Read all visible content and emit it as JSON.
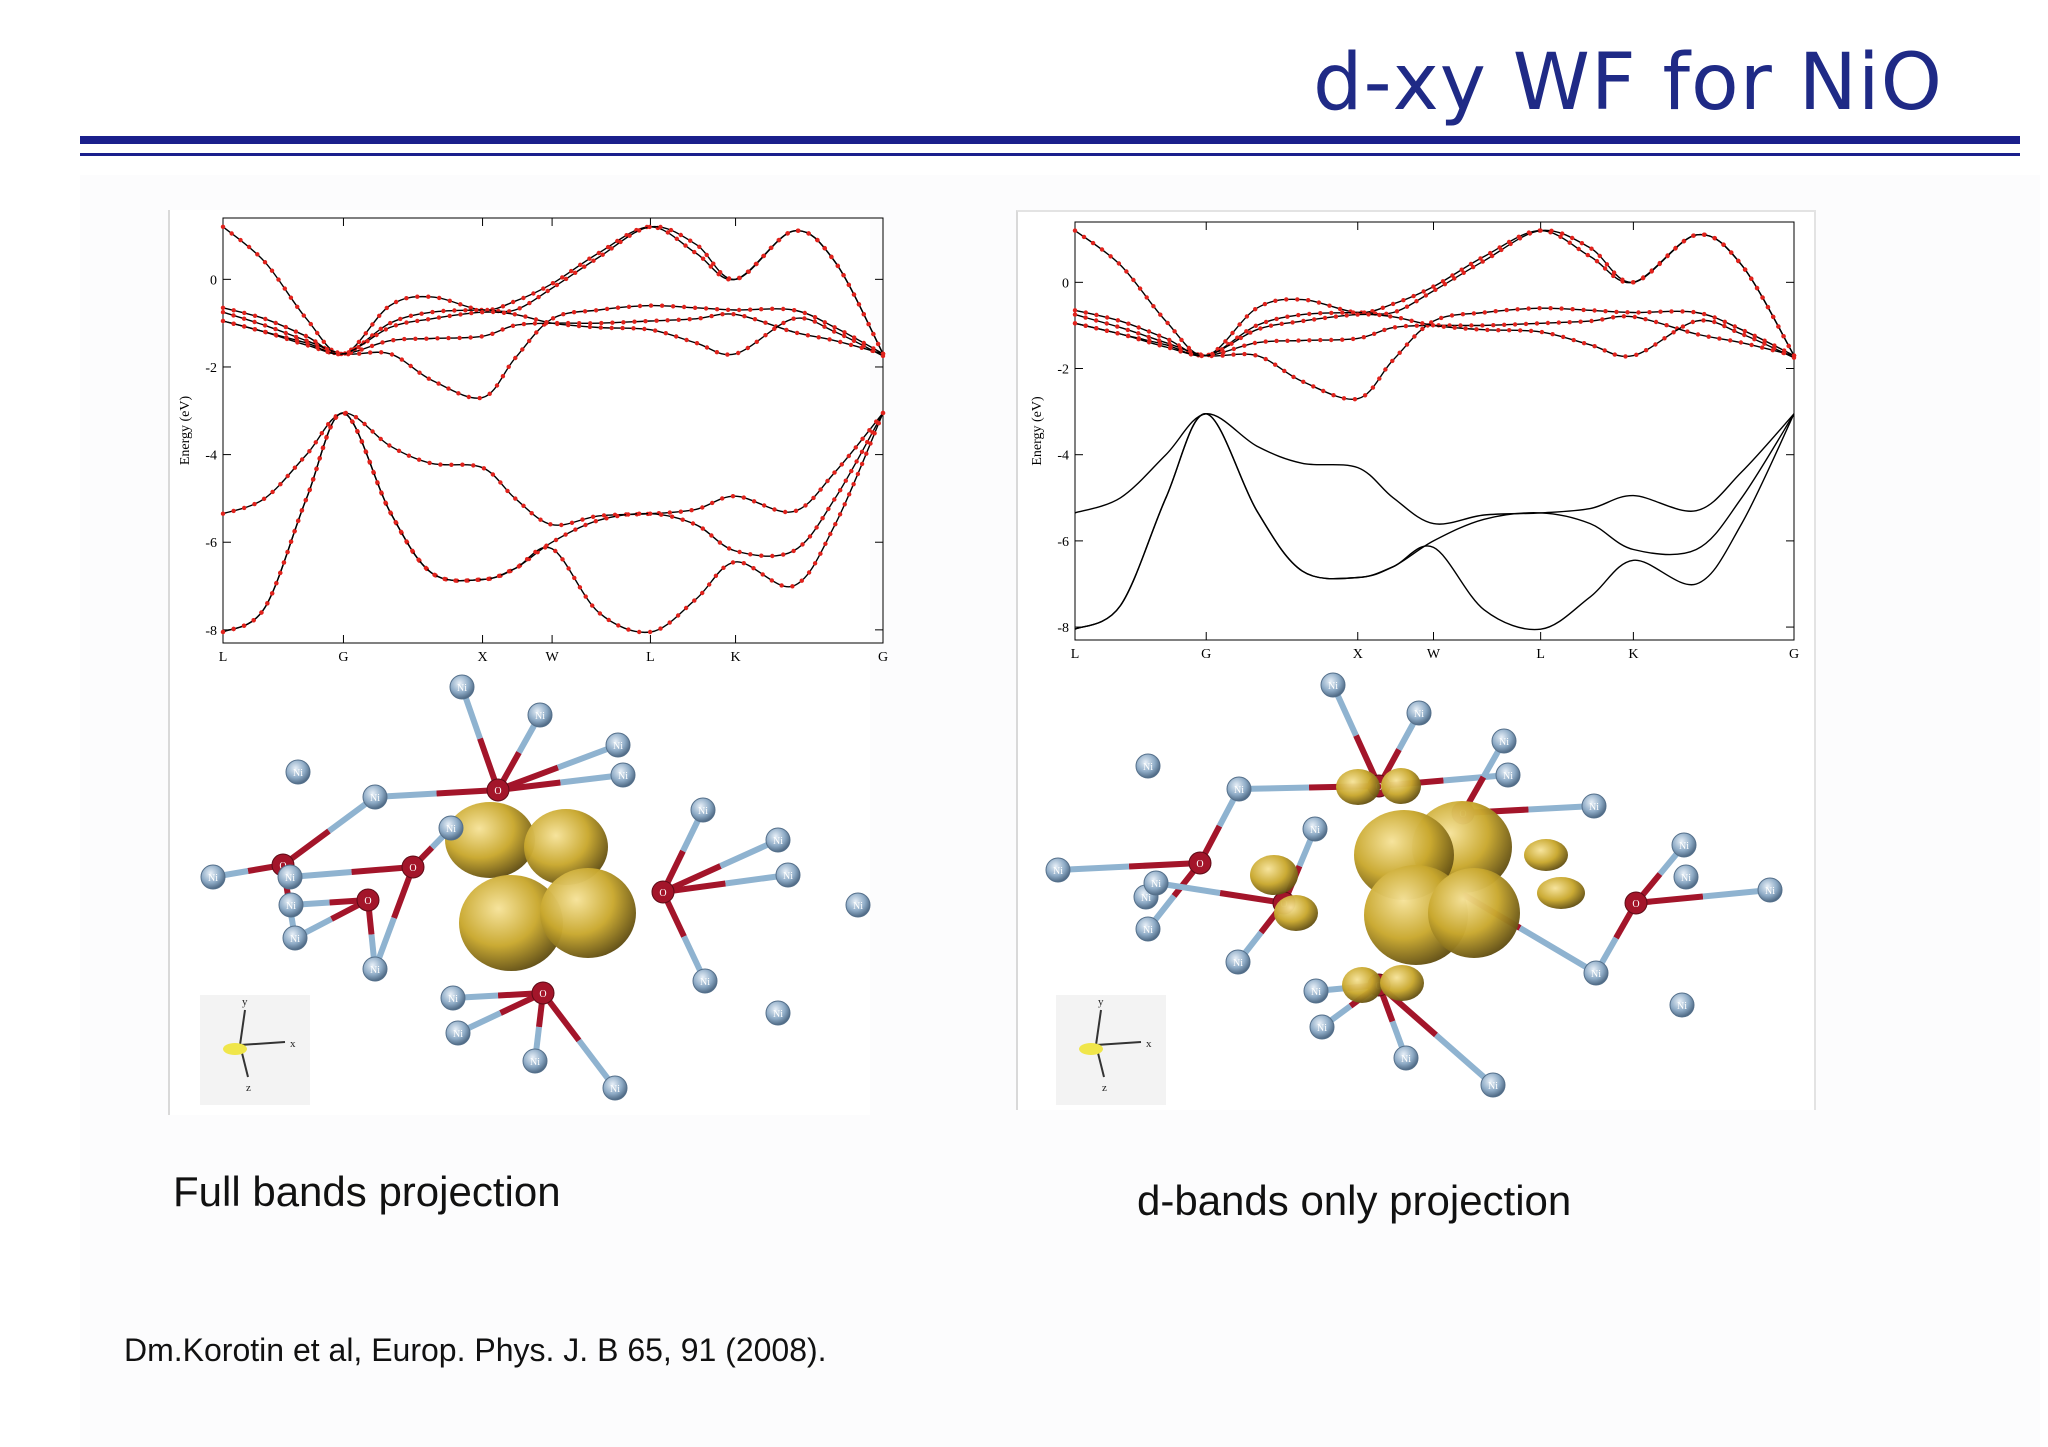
{
  "slide": {
    "title": "d-xy WF for NiO",
    "caption_left": "Full bands projection",
    "caption_right": "d-bands only projection",
    "reference": "Dm.Korotin et al, Europ. Phys. J. B 65, 91 (2008)."
  },
  "colors": {
    "title": "#1f2a86",
    "rule": "#1a1f8c",
    "band_line": "#000000",
    "projection_dots": "#e0221c",
    "orbital_lobe": "#c9a82e",
    "ni_atom": "#8eabc6",
    "o_atom": "#a3152a",
    "bond_ni": "#8fb3d0",
    "bond_o": "#a3152a"
  },
  "structure_labels": {
    "ni": "Ni",
    "o": "O",
    "axis_x": "x",
    "axis_y": "y",
    "axis_z": "z"
  },
  "chart_data": [
    {
      "type": "line",
      "panel": "Full bands projection",
      "ylabel": "Energy (eV)",
      "ylim": [
        -8.3,
        1.4
      ],
      "yticks": [
        "0",
        "-2",
        "-4",
        "-6",
        "-8"
      ],
      "ytick_values": [
        0,
        -2,
        -4,
        -6,
        -8
      ],
      "kpoints": [
        "L",
        "G",
        "X",
        "W",
        "L",
        "K",
        "G"
      ],
      "kpoint_positions": [
        0,
        0.866,
        1.866,
        2.366,
        3.073,
        3.685,
        4.745
      ],
      "projection_dots_on": "all bands",
      "series": [
        {
          "x": [
            0,
            0.3,
            0.6,
            0.866,
            1.2,
            1.5,
            1.866,
            2.1,
            2.366,
            2.7,
            3.073,
            3.4,
            3.685,
            4.1,
            4.4,
            4.745
          ],
          "values": [
            1.2,
            0.4,
            -0.9,
            -1.7,
            -0.6,
            -0.4,
            -0.7,
            -0.5,
            -0.1,
            0.6,
            1.2,
            0.6,
            0.0,
            1.1,
            0.4,
            -1.7
          ]
        },
        {
          "x": [
            0,
            0.3,
            0.6,
            0.866,
            1.2,
            1.5,
            1.866,
            2.1,
            2.366,
            2.7,
            3.073,
            3.4,
            3.685,
            4.1,
            4.4,
            4.745
          ],
          "values": [
            -0.65,
            -0.9,
            -1.3,
            -1.7,
            -1.0,
            -0.75,
            -0.7,
            -0.7,
            -0.2,
            0.5,
            1.2,
            0.8,
            0.0,
            1.1,
            0.4,
            -1.7
          ]
        },
        {
          "x": [
            0,
            0.3,
            0.6,
            0.866,
            1.2,
            1.5,
            1.866,
            2.1,
            2.366,
            2.7,
            3.073,
            3.4,
            3.685,
            4.1,
            4.4,
            4.745
          ],
          "values": [
            -0.75,
            -1.05,
            -1.4,
            -1.7,
            -1.7,
            -2.3,
            -2.7,
            -1.8,
            -0.9,
            -0.7,
            -0.6,
            -0.65,
            -0.7,
            -0.7,
            -1.1,
            -1.7
          ]
        },
        {
          "x": [
            0,
            0.3,
            0.6,
            0.866,
            1.2,
            1.5,
            1.866,
            2.1,
            2.366,
            2.7,
            3.073,
            3.4,
            3.685,
            4.1,
            4.4,
            4.745
          ],
          "values": [
            -0.95,
            -1.2,
            -1.5,
            -1.7,
            -1.4,
            -1.35,
            -1.3,
            -1.05,
            -1.0,
            -1.0,
            -0.95,
            -0.9,
            -0.8,
            -1.2,
            -1.4,
            -1.7
          ]
        },
        {
          "x": [
            0,
            0.3,
            0.6,
            0.866,
            1.2,
            1.5,
            1.866,
            2.1,
            2.366,
            2.7,
            3.073,
            3.4,
            3.685,
            4.1,
            4.4,
            4.745
          ],
          "values": [
            -0.95,
            -1.2,
            -1.45,
            -1.7,
            -1.1,
            -0.9,
            -0.75,
            -0.8,
            -1.0,
            -1.1,
            -1.15,
            -1.45,
            -1.7,
            -0.9,
            -1.2,
            -1.75
          ]
        },
        {
          "x": [
            0,
            0.3,
            0.6,
            0.866,
            1.2,
            1.5,
            1.866,
            2.1,
            2.366,
            2.7,
            3.073,
            3.4,
            3.685,
            4.1,
            4.4,
            4.745
          ],
          "values": [
            -5.35,
            -5.0,
            -4.0,
            -3.05,
            -3.8,
            -4.2,
            -4.3,
            -5.0,
            -5.6,
            -5.4,
            -5.35,
            -5.25,
            -4.95,
            -5.3,
            -4.4,
            -3.05
          ]
        },
        {
          "x": [
            0,
            0.3,
            0.6,
            0.866,
            1.2,
            1.5,
            1.866,
            2.1,
            2.366,
            2.7,
            3.073,
            3.4,
            3.685,
            4.1,
            4.4,
            4.745
          ],
          "values": [
            -8.05,
            -7.5,
            -5.0,
            -3.05,
            -5.3,
            -6.7,
            -6.85,
            -6.6,
            -6.0,
            -5.5,
            -5.35,
            -5.6,
            -6.2,
            -6.2,
            -5.0,
            -3.05
          ]
        },
        {
          "x": [
            0,
            0.3,
            0.6,
            0.866,
            1.2,
            1.5,
            1.866,
            2.1,
            2.366,
            2.7,
            3.073,
            3.4,
            3.685,
            4.1,
            4.4,
            4.745
          ],
          "values": [
            -8.05,
            -7.5,
            -5.0,
            -3.05,
            -5.3,
            -6.7,
            -6.85,
            -6.6,
            -6.15,
            -7.6,
            -8.05,
            -7.3,
            -6.45,
            -7.0,
            -5.6,
            -3.05
          ]
        }
      ]
    },
    {
      "type": "line",
      "panel": "d-bands only projection",
      "ylabel": "Energy (eV)",
      "ylim": [
        -8.3,
        1.4
      ],
      "yticks": [
        "0",
        "-2",
        "-4",
        "-6",
        "-8"
      ],
      "ytick_values": [
        0,
        -2,
        -4,
        -6,
        -8
      ],
      "kpoints": [
        "L",
        "G",
        "X",
        "W",
        "L",
        "K",
        "G"
      ],
      "kpoint_positions": [
        0,
        0.866,
        1.866,
        2.366,
        3.073,
        3.685,
        4.745
      ],
      "projection_dots_on": "upper five bands",
      "series": [
        {
          "x": [
            0,
            0.3,
            0.6,
            0.866,
            1.2,
            1.5,
            1.866,
            2.1,
            2.366,
            2.7,
            3.073,
            3.4,
            3.685,
            4.1,
            4.4,
            4.745
          ],
          "values": [
            1.2,
            0.4,
            -0.9,
            -1.7,
            -0.6,
            -0.4,
            -0.7,
            -0.5,
            -0.1,
            0.6,
            1.2,
            0.6,
            0.0,
            1.1,
            0.4,
            -1.7
          ]
        },
        {
          "x": [
            0,
            0.3,
            0.6,
            0.866,
            1.2,
            1.5,
            1.866,
            2.1,
            2.366,
            2.7,
            3.073,
            3.4,
            3.685,
            4.1,
            4.4,
            4.745
          ],
          "values": [
            -0.65,
            -0.9,
            -1.3,
            -1.7,
            -1.0,
            -0.75,
            -0.7,
            -0.7,
            -0.2,
            0.5,
            1.2,
            0.8,
            0.0,
            1.1,
            0.4,
            -1.7
          ]
        },
        {
          "x": [
            0,
            0.3,
            0.6,
            0.866,
            1.2,
            1.5,
            1.866,
            2.1,
            2.366,
            2.7,
            3.073,
            3.4,
            3.685,
            4.1,
            4.4,
            4.745
          ],
          "values": [
            -0.75,
            -1.05,
            -1.4,
            -1.7,
            -1.7,
            -2.3,
            -2.7,
            -1.8,
            -0.9,
            -0.7,
            -0.6,
            -0.65,
            -0.7,
            -0.7,
            -1.1,
            -1.7
          ]
        },
        {
          "x": [
            0,
            0.3,
            0.6,
            0.866,
            1.2,
            1.5,
            1.866,
            2.1,
            2.366,
            2.7,
            3.073,
            3.4,
            3.685,
            4.1,
            4.4,
            4.745
          ],
          "values": [
            -0.95,
            -1.2,
            -1.5,
            -1.7,
            -1.4,
            -1.35,
            -1.3,
            -1.05,
            -1.0,
            -1.0,
            -0.95,
            -0.9,
            -0.8,
            -1.2,
            -1.4,
            -1.7
          ]
        },
        {
          "x": [
            0,
            0.3,
            0.6,
            0.866,
            1.2,
            1.5,
            1.866,
            2.1,
            2.366,
            2.7,
            3.073,
            3.4,
            3.685,
            4.1,
            4.4,
            4.745
          ],
          "values": [
            -0.95,
            -1.2,
            -1.45,
            -1.7,
            -1.1,
            -0.9,
            -0.75,
            -0.8,
            -1.0,
            -1.1,
            -1.15,
            -1.45,
            -1.7,
            -0.9,
            -1.2,
            -1.75
          ]
        },
        {
          "x": [
            0,
            0.3,
            0.6,
            0.866,
            1.2,
            1.5,
            1.866,
            2.1,
            2.366,
            2.7,
            3.073,
            3.4,
            3.685,
            4.1,
            4.4,
            4.745
          ],
          "values": [
            -5.35,
            -5.0,
            -4.0,
            -3.05,
            -3.8,
            -4.2,
            -4.3,
            -5.0,
            -5.6,
            -5.4,
            -5.35,
            -5.25,
            -4.95,
            -5.3,
            -4.4,
            -3.05
          ]
        },
        {
          "x": [
            0,
            0.3,
            0.6,
            0.866,
            1.2,
            1.5,
            1.866,
            2.1,
            2.366,
            2.7,
            3.073,
            3.4,
            3.685,
            4.1,
            4.4,
            4.745
          ],
          "values": [
            -8.05,
            -7.5,
            -5.0,
            -3.05,
            -5.3,
            -6.7,
            -6.85,
            -6.6,
            -6.0,
            -5.5,
            -5.35,
            -5.6,
            -6.2,
            -6.2,
            -5.0,
            -3.05
          ]
        },
        {
          "x": [
            0,
            0.3,
            0.6,
            0.866,
            1.2,
            1.5,
            1.866,
            2.1,
            2.366,
            2.7,
            3.073,
            3.4,
            3.685,
            4.1,
            4.4,
            4.745
          ],
          "values": [
            -8.05,
            -7.5,
            -5.0,
            -3.05,
            -5.3,
            -6.7,
            -6.85,
            -6.6,
            -6.15,
            -7.6,
            -8.05,
            -7.3,
            -6.45,
            -7.0,
            -5.6,
            -3.05
          ]
        }
      ]
    }
  ]
}
